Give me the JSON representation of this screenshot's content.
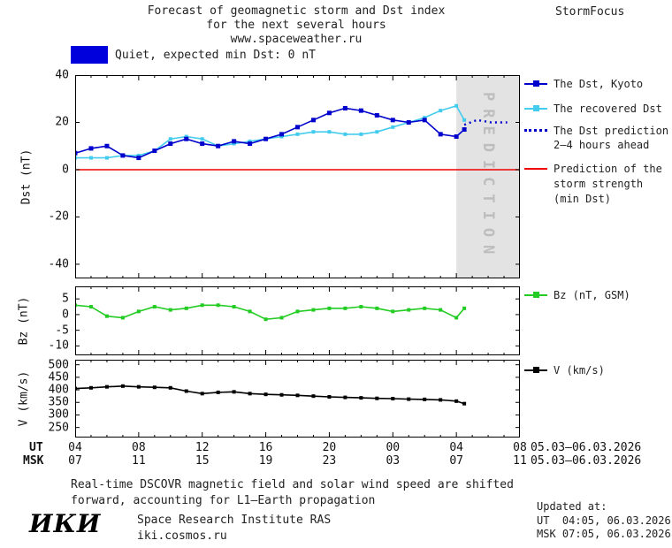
{
  "header": {
    "title_line1": "Forecast of geomagnetic storm and Dst index",
    "title_line2": "for the next several hours",
    "title_line3": "www.spaceweather.ru",
    "brand": "StormFocus"
  },
  "banner": {
    "label": "Quiet, expected min Dst: 0 nT"
  },
  "colors": {
    "dst": "#0000cc",
    "recovered": "#44ccee",
    "prediction": "#0000cc",
    "storm": "#ee0000",
    "bz": "#22cc22",
    "v": "#000000",
    "quiet_box": "#0000dd",
    "prediction_zone": "#e3e3e3"
  },
  "prediction_label": "PREDICTION",
  "legend": {
    "dst_kyoto": "The Dst, Kyoto",
    "recovered": "The recovered Dst",
    "prediction_l1": "The Dst prediction",
    "prediction_l2": "2–4 hours ahead",
    "storm_l1": "Prediction of the",
    "storm_l2": "storm strength",
    "storm_l3": "(min Dst)",
    "bz": "Bz (nT, GSM)",
    "v": "V (km/s)"
  },
  "chart_data": [
    {
      "id": "main",
      "type": "line",
      "ylabel": "Dst (nT)",
      "ylim": [
        -46,
        40
      ],
      "yticks": [
        40,
        20,
        0,
        -20,
        -40
      ],
      "xlim": [
        4,
        32
      ],
      "xticks": [
        4,
        8,
        12,
        16,
        20,
        24,
        28,
        32
      ],
      "prediction_region": [
        28,
        32
      ],
      "series": [
        {
          "name": "Prediction of the storm strength (min Dst)",
          "color": "#ee0000",
          "x": [
            4,
            32
          ],
          "values": [
            0,
            0
          ]
        },
        {
          "name": "The recovered Dst",
          "color": "#44ccee",
          "marker": "square",
          "marker_size": 4,
          "x": [
            4,
            5,
            6,
            7,
            8,
            9,
            10,
            11,
            12,
            13,
            14,
            15,
            16,
            17,
            18,
            19,
            20,
            21,
            22,
            23,
            24,
            25,
            26,
            27,
            28,
            28.5
          ],
          "values": [
            5,
            5,
            5,
            6,
            6,
            8,
            13,
            14,
            13,
            10,
            11,
            12,
            13,
            14,
            15,
            16,
            16,
            15,
            15,
            16,
            18,
            20,
            22,
            25,
            27,
            21
          ]
        },
        {
          "name": "The Dst, Kyoto",
          "color": "#0000cc",
          "marker": "square",
          "marker_size": 5,
          "x": [
            4,
            5,
            6,
            7,
            8,
            9,
            10,
            11,
            12,
            13,
            14,
            15,
            16,
            17,
            18,
            19,
            20,
            21,
            22,
            23,
            24,
            25,
            26,
            27,
            28,
            28.5
          ],
          "values": [
            7,
            9,
            10,
            6,
            5,
            8,
            11,
            13,
            11,
            10,
            12,
            11,
            13,
            15,
            18,
            21,
            24,
            26,
            25,
            23,
            21,
            20,
            21,
            15,
            14,
            17
          ]
        },
        {
          "name": "The Dst prediction 2–4 hours ahead",
          "color": "#0000cc",
          "style": "dotted",
          "x": [
            28.5,
            29.3,
            30.2,
            31.2
          ],
          "values": [
            19,
            21,
            20,
            20
          ]
        }
      ]
    },
    {
      "id": "bz",
      "type": "line",
      "ylabel": "Bz (nT)",
      "ylim": [
        -13,
        9
      ],
      "yticks": [
        5,
        0,
        -5,
        -10
      ],
      "xlim": [
        4,
        32
      ],
      "xticks": [
        4,
        8,
        12,
        16,
        20,
        24,
        28,
        32
      ],
      "series": [
        {
          "name": "Bz (nT, GSM)",
          "color": "#22cc22",
          "marker": "square",
          "marker_size": 4,
          "x": [
            4,
            5,
            6,
            7,
            8,
            9,
            10,
            11,
            12,
            13,
            14,
            15,
            16,
            17,
            18,
            19,
            20,
            21,
            22,
            23,
            24,
            25,
            26,
            27,
            28,
            28.5
          ],
          "values": [
            3,
            2.5,
            -0.5,
            -1,
            1,
            2.5,
            1.5,
            2,
            3,
            3,
            2.5,
            1,
            -1.5,
            -1,
            1,
            1.5,
            2,
            2,
            2.5,
            2,
            1,
            1.5,
            2,
            1.5,
            -1,
            2
          ]
        }
      ]
    },
    {
      "id": "v",
      "type": "line",
      "ylabel": "V (km/s)",
      "ylim": [
        210,
        520
      ],
      "yticks": [
        500,
        450,
        400,
        350,
        300,
        250
      ],
      "xlim": [
        4,
        32
      ],
      "xticks": [
        4,
        8,
        12,
        16,
        20,
        24,
        28,
        32
      ],
      "series": [
        {
          "name": "V (km/s)",
          "color": "#000000",
          "marker": "square",
          "marker_size": 4,
          "x": [
            4,
            5,
            6,
            7,
            8,
            9,
            10,
            11,
            12,
            13,
            14,
            15,
            16,
            17,
            18,
            19,
            20,
            21,
            22,
            23,
            24,
            25,
            26,
            27,
            28,
            28.5
          ],
          "values": [
            405,
            408,
            412,
            415,
            412,
            410,
            408,
            395,
            385,
            390,
            392,
            385,
            382,
            380,
            378,
            375,
            372,
            370,
            368,
            366,
            365,
            363,
            362,
            360,
            355,
            345
          ]
        }
      ]
    }
  ],
  "axis": {
    "ut_label": "UT",
    "msk_label": "MSK",
    "ut_ticks": [
      "04",
      "08",
      "12",
      "16",
      "20",
      "00",
      "04",
      "08"
    ],
    "msk_ticks": [
      "07",
      "11",
      "15",
      "19",
      "23",
      "03",
      "07",
      "11"
    ],
    "ut_date": "05.03–06.03.2026",
    "msk_date": "05.03–06.03.2026"
  },
  "footnote": {
    "line1": "Real-time DSCOVR magnetic field and solar wind speed are shifted",
    "line2": "forward, accounting for L1–Earth propagation"
  },
  "footer": {
    "logo": "ИКИ",
    "institute": "Space Research Institute RAS",
    "site": "iki.cosmos.ru",
    "updated_label": "Updated at:",
    "updated_ut": "UT  04:05, 06.03.2026",
    "updated_msk": "MSK 07:05, 06.03.2026"
  }
}
